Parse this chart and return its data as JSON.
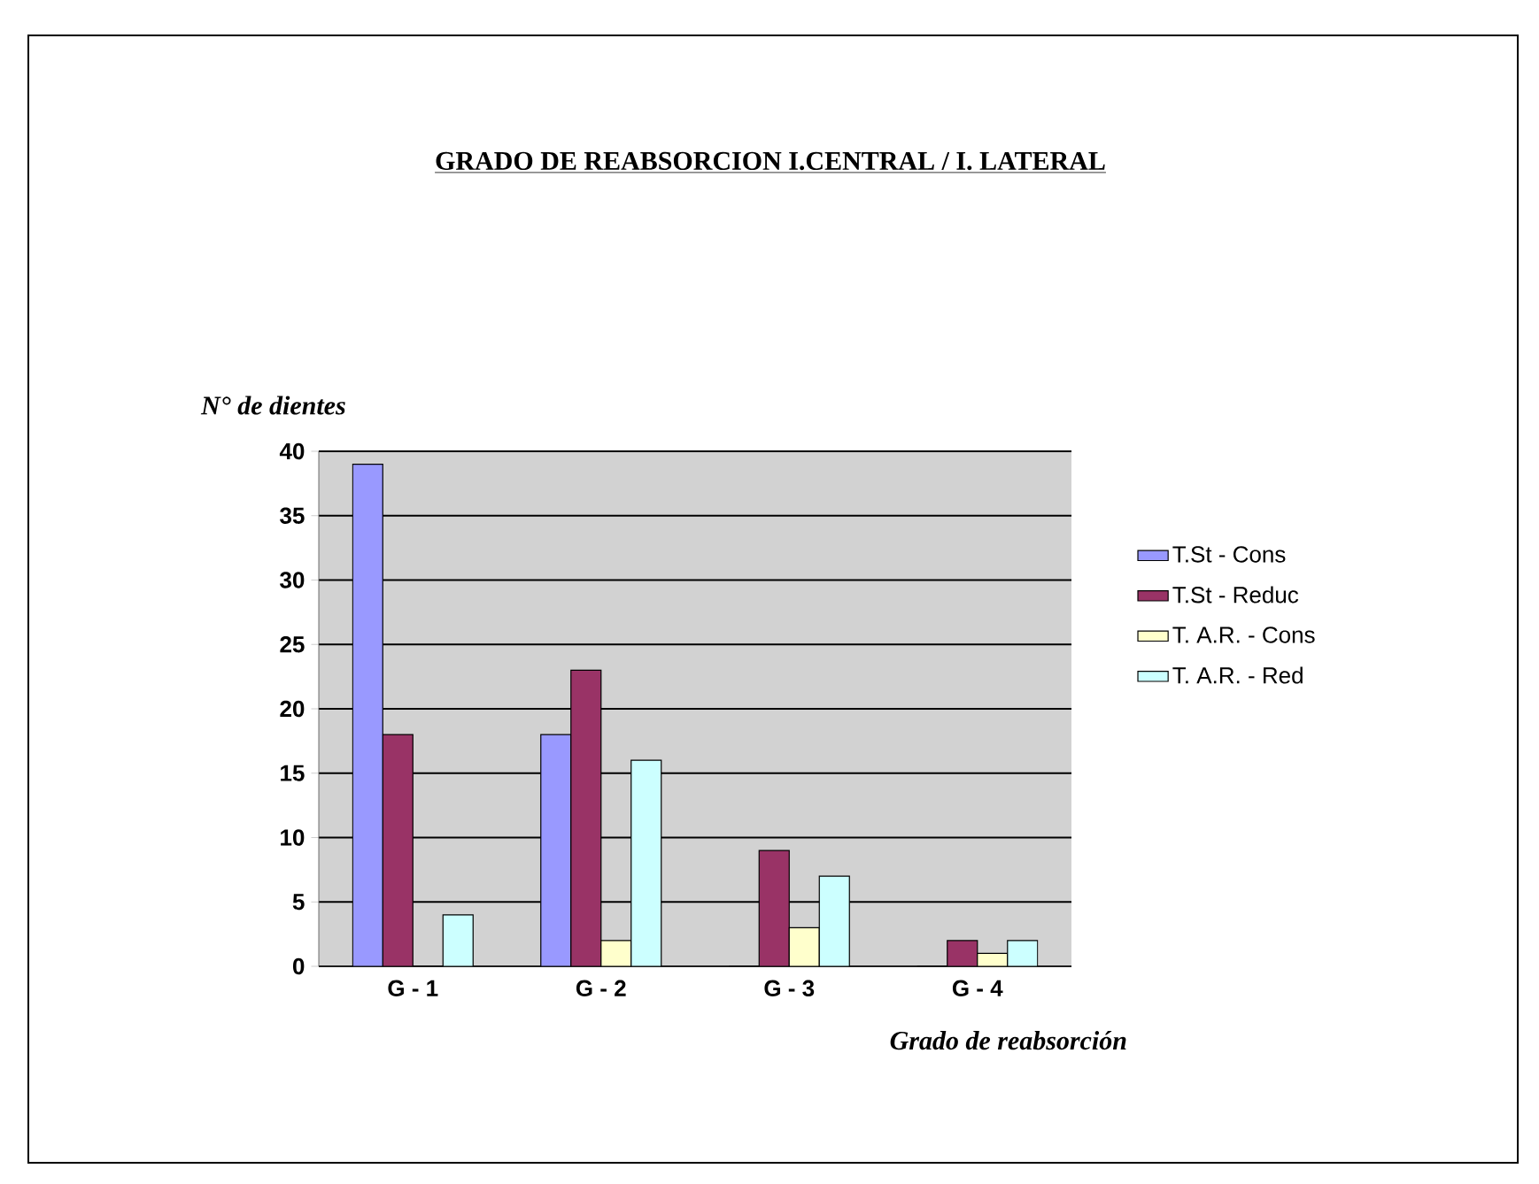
{
  "chart_data": {
    "type": "bar",
    "title": "GRADO DE REABSORCION  I.CENTRAL / I. LATERAL",
    "ylabel": "N° de dientes",
    "xlabel": "Grado de reabsorción",
    "categories": [
      "G - 1",
      "G - 2",
      "G - 3",
      "G - 4"
    ],
    "series": [
      {
        "name": "T.St - Cons",
        "color": "#9999ff",
        "values": [
          39,
          18,
          0,
          0
        ]
      },
      {
        "name": "T.St - Reduc",
        "color": "#993366",
        "values": [
          18,
          23,
          9,
          2
        ]
      },
      {
        "name": "T. A.R. - Cons",
        "color": "#ffffcc",
        "values": [
          0,
          2,
          3,
          1
        ]
      },
      {
        "name": "T. A.R. - Red",
        "color": "#ccffff",
        "values": [
          4,
          16,
          7,
          2
        ]
      }
    ],
    "ylim": [
      0,
      40
    ],
    "yticks": [
      0,
      5,
      10,
      15,
      20,
      25,
      30,
      35,
      40
    ],
    "grid": "y",
    "legend": "right"
  }
}
